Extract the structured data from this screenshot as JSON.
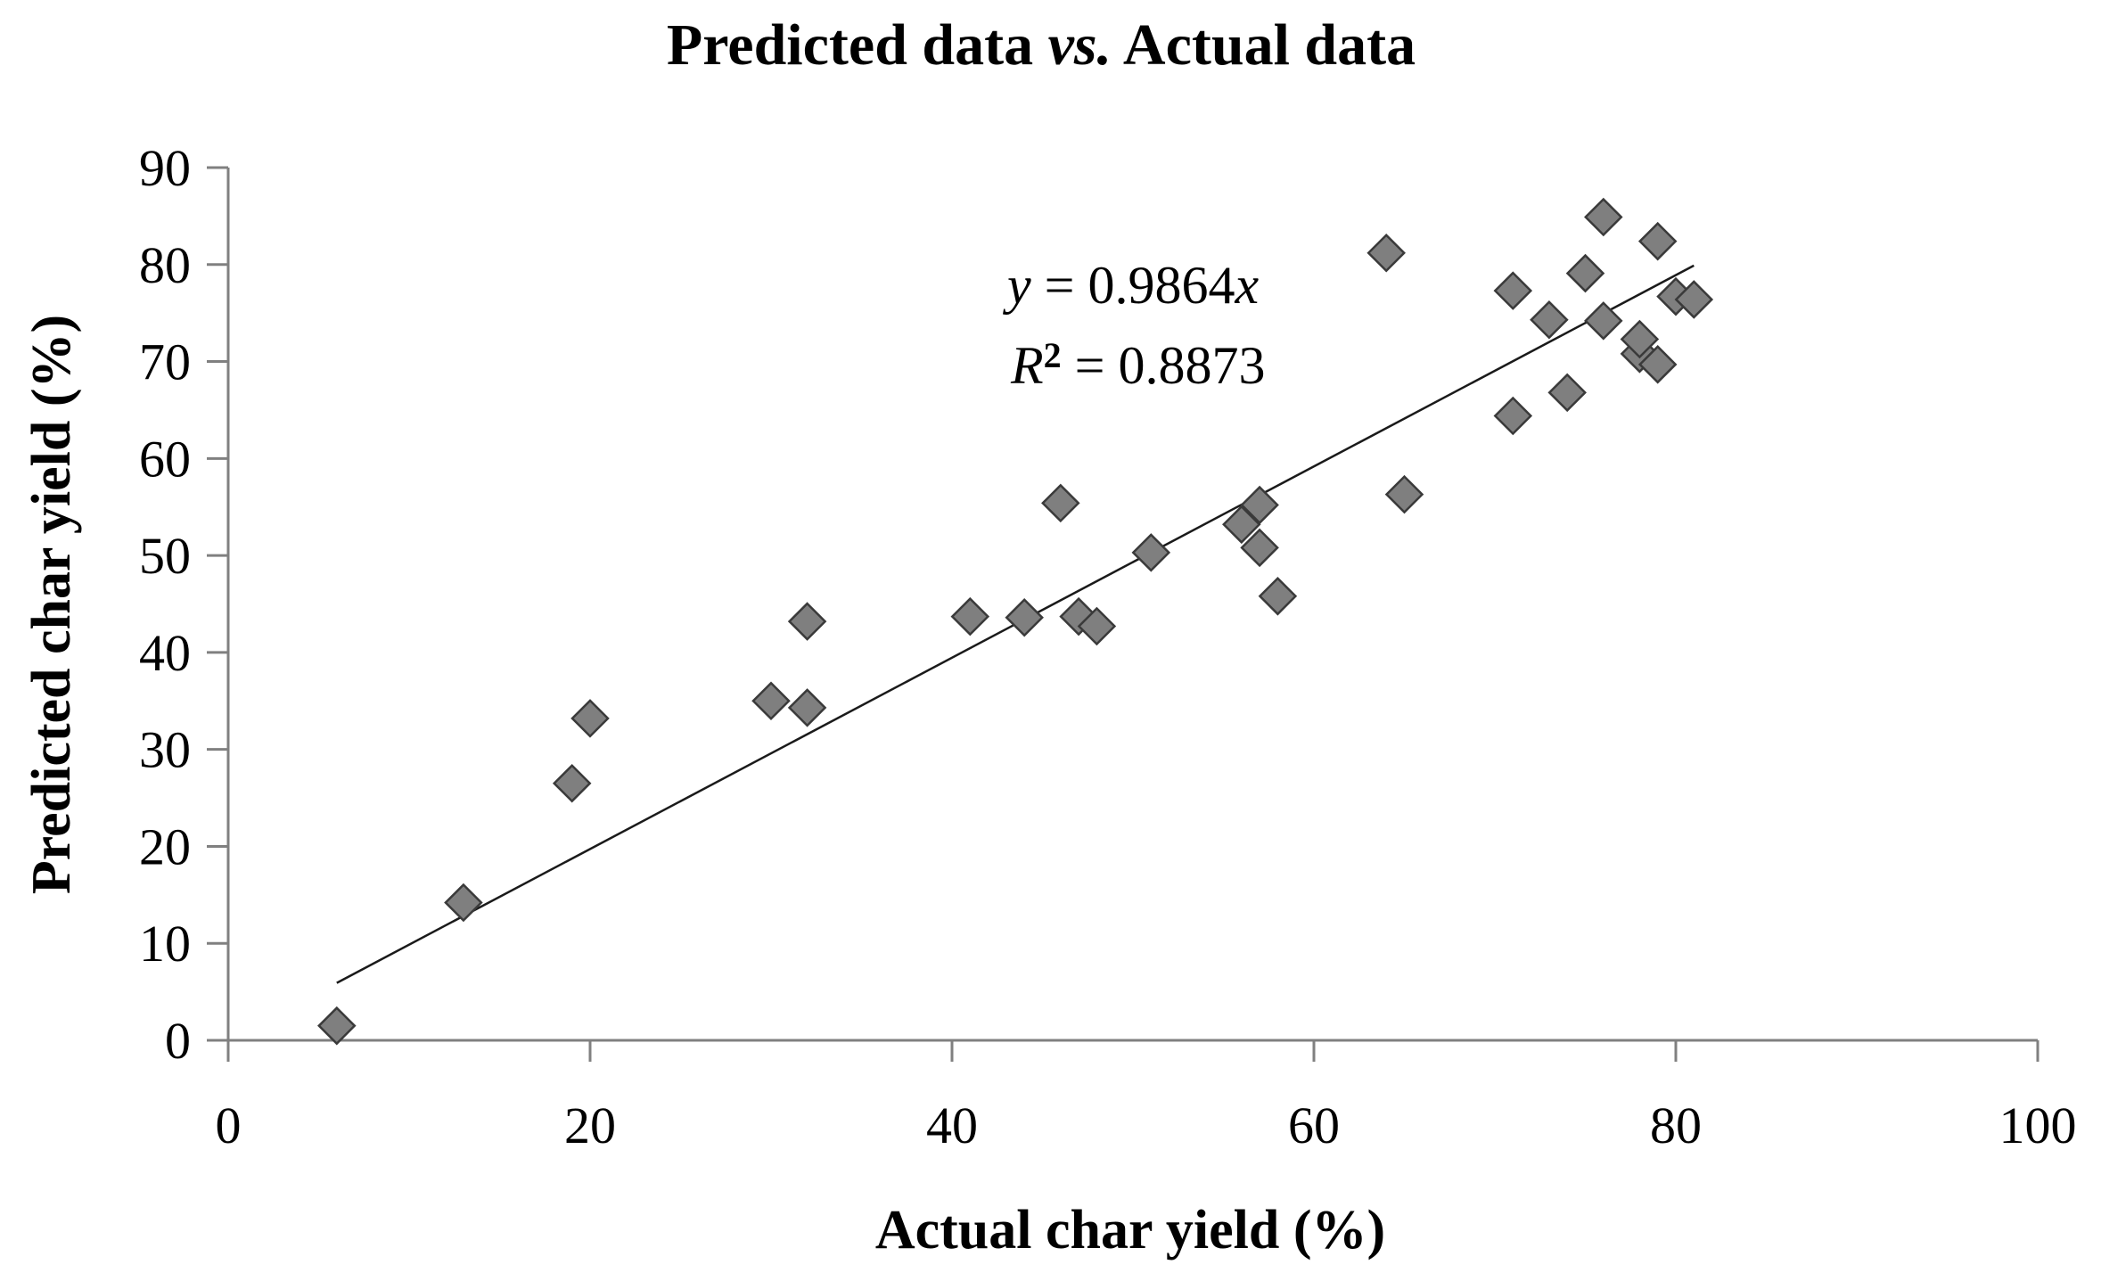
{
  "chart_data": {
    "type": "scatter",
    "title_prefix": "Predicted data ",
    "title_italic": "vs.",
    "title_suffix": " Actual data",
    "xlabel": "Actual char yield (%)",
    "ylabel": "Predicted char yield (%)",
    "xlim": [
      0,
      100
    ],
    "ylim": [
      0,
      90
    ],
    "x_ticks": [
      0,
      20,
      40,
      60,
      80,
      100
    ],
    "y_ticks": [
      0,
      10,
      20,
      30,
      40,
      50,
      60,
      70,
      80,
      90
    ],
    "grid": false,
    "legend": "none",
    "marker_color": "#7f7f7f",
    "marker_shape": "diamond",
    "trendline": {
      "slope": 0.9864,
      "x_range": [
        6,
        81
      ],
      "eq_y_label": "y",
      "eq_y_rest": " = 0.9864",
      "eq_x_var": "x",
      "eq_r_label": "R",
      "eq_r_sup": "2",
      "eq_r_rest": " = 0.8873"
    },
    "points": [
      {
        "x": 6,
        "y": 1.5
      },
      {
        "x": 13,
        "y": 14.2
      },
      {
        "x": 19,
        "y": 26.5
      },
      {
        "x": 20,
        "y": 33.2
      },
      {
        "x": 30,
        "y": 35
      },
      {
        "x": 32,
        "y": 34.3
      },
      {
        "x": 32,
        "y": 43.2
      },
      {
        "x": 41,
        "y": 43.7
      },
      {
        "x": 44,
        "y": 43.6
      },
      {
        "x": 46,
        "y": 55.4
      },
      {
        "x": 47,
        "y": 43.7
      },
      {
        "x": 48,
        "y": 42.7
      },
      {
        "x": 51,
        "y": 50.3
      },
      {
        "x": 56,
        "y": 53.2
      },
      {
        "x": 57,
        "y": 55.2
      },
      {
        "x": 57,
        "y": 50.8
      },
      {
        "x": 58,
        "y": 45.8
      },
      {
        "x": 64,
        "y": 81.2
      },
      {
        "x": 65,
        "y": 56.3
      },
      {
        "x": 71,
        "y": 77.3
      },
      {
        "x": 71,
        "y": 64.4
      },
      {
        "x": 73,
        "y": 74.3
      },
      {
        "x": 74,
        "y": 66.8
      },
      {
        "x": 75,
        "y": 79.1
      },
      {
        "x": 76,
        "y": 84.9
      },
      {
        "x": 76,
        "y": 74.2
      },
      {
        "x": 78,
        "y": 70.8
      },
      {
        "x": 78,
        "y": 72.3
      },
      {
        "x": 79,
        "y": 82.4
      },
      {
        "x": 79,
        "y": 69.7
      },
      {
        "x": 80,
        "y": 76.7
      },
      {
        "x": 81,
        "y": 76.4
      }
    ]
  }
}
